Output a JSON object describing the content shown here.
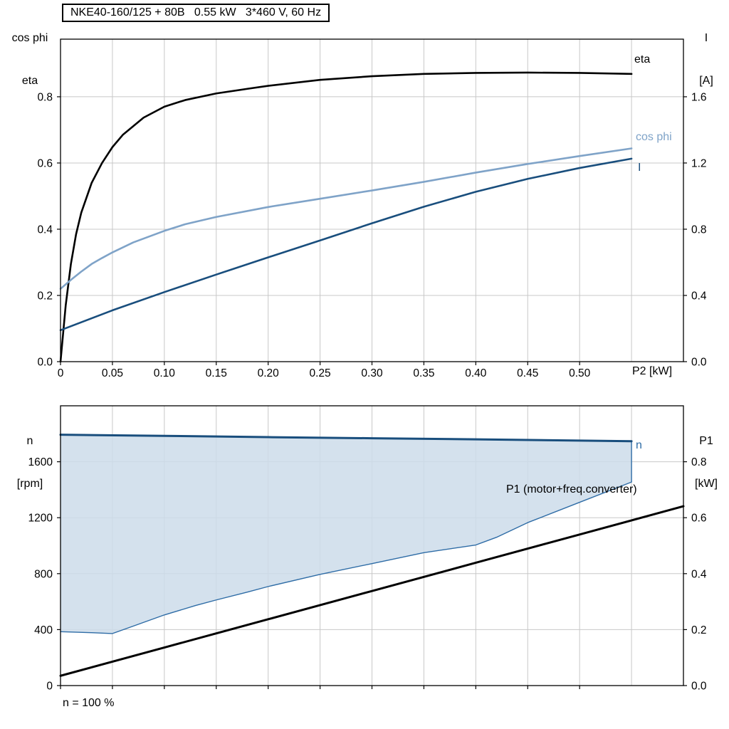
{
  "labels": {
    "top_left_axis": [
      "cos phi",
      "eta"
    ],
    "top_right_axis": [
      "I",
      "[A]"
    ],
    "bottom_left_axis": [
      "n",
      "[rpm]"
    ],
    "bottom_right_axis": [
      "P1",
      "[kW]"
    ],
    "footnote": "n = 100 %"
  },
  "colors": {
    "page_bg": "#ffffff",
    "plot_bg": "#ffffff",
    "grid": "#c8c8c8",
    "axis": "#000000",
    "text": "#000000",
    "eta": "#000000",
    "cos_phi": "#7fa3c8",
    "current": "#194e7d",
    "speed": "#194e7d",
    "speed_min": "#2e6ca6",
    "area_fill": "#cddcea",
    "p1": "#000000"
  },
  "chart_data": [
    {
      "id": "motor-performance",
      "type": "line",
      "title": "NKE40-160/125 + 80B   0.55 kW   3*460 V, 60 Hz",
      "xlabel": "P2 [kW]",
      "xlim": [
        0,
        0.6
      ],
      "x_ticks": [
        0,
        0.05,
        0.1,
        0.15,
        0.2,
        0.25,
        0.3,
        0.35,
        0.4,
        0.45,
        0.5
      ],
      "x_tick_labels": [
        "0",
        "0.05",
        "0.10",
        "0.15",
        "0.20",
        "0.25",
        "0.30",
        "0.35",
        "0.40",
        "0.45",
        "0.50"
      ],
      "x_grid": [
        0.05,
        0.1,
        0.15,
        0.2,
        0.25,
        0.3,
        0.35,
        0.4,
        0.45,
        0.5,
        0.55
      ],
      "grid": true,
      "y_left": {
        "label": "cos phi / eta",
        "lim": [
          0,
          0.974
        ],
        "ticks": [
          0,
          0.2,
          0.4,
          0.6,
          0.8
        ],
        "tick_labels": [
          "0.0",
          "0.2",
          "0.4",
          "0.6",
          "0.8"
        ]
      },
      "y_right": {
        "label": "I [A]",
        "lim": [
          0,
          1.948
        ],
        "ticks": [
          0,
          0.4,
          0.8,
          1.2,
          1.6
        ],
        "tick_labels": [
          "0.0",
          "0.4",
          "0.8",
          "1.2",
          "1.6"
        ]
      },
      "series": [
        {
          "name": "eta",
          "axis": "left",
          "color_key": "eta",
          "width": 2.6,
          "points": [
            [
              0,
              0
            ],
            [
              0.005,
              0.17
            ],
            [
              0.01,
              0.295
            ],
            [
              0.015,
              0.385
            ],
            [
              0.02,
              0.45
            ],
            [
              0.03,
              0.54
            ],
            [
              0.04,
              0.6
            ],
            [
              0.05,
              0.648
            ],
            [
              0.06,
              0.685
            ],
            [
              0.08,
              0.737
            ],
            [
              0.1,
              0.77
            ],
            [
              0.12,
              0.79
            ],
            [
              0.15,
              0.81
            ],
            [
              0.18,
              0.824
            ],
            [
              0.2,
              0.833
            ],
            [
              0.25,
              0.851
            ],
            [
              0.3,
              0.862
            ],
            [
              0.35,
              0.869
            ],
            [
              0.4,
              0.872
            ],
            [
              0.45,
              0.873
            ],
            [
              0.5,
              0.872
            ],
            [
              0.55,
              0.869
            ]
          ]
        },
        {
          "name": "cos phi",
          "axis": "left",
          "color_key": "cos_phi",
          "width": 2.6,
          "points": [
            [
              0,
              0.22
            ],
            [
              0.01,
              0.247
            ],
            [
              0.02,
              0.272
            ],
            [
              0.03,
              0.295
            ],
            [
              0.04,
              0.313
            ],
            [
              0.05,
              0.33
            ],
            [
              0.07,
              0.36
            ],
            [
              0.1,
              0.395
            ],
            [
              0.12,
              0.415
            ],
            [
              0.15,
              0.437
            ],
            [
              0.2,
              0.467
            ],
            [
              0.25,
              0.492
            ],
            [
              0.3,
              0.517
            ],
            [
              0.35,
              0.543
            ],
            [
              0.4,
              0.571
            ],
            [
              0.45,
              0.597
            ],
            [
              0.5,
              0.621
            ],
            [
              0.55,
              0.644
            ]
          ]
        },
        {
          "name": "I",
          "axis": "left",
          "color_key": "current",
          "width": 2.6,
          "points": [
            [
              0,
              0.095
            ],
            [
              0.05,
              0.155
            ],
            [
              0.1,
              0.21
            ],
            [
              0.15,
              0.263
            ],
            [
              0.2,
              0.315
            ],
            [
              0.25,
              0.366
            ],
            [
              0.3,
              0.418
            ],
            [
              0.35,
              0.468
            ],
            [
              0.4,
              0.513
            ],
            [
              0.45,
              0.552
            ],
            [
              0.5,
              0.585
            ],
            [
              0.55,
              0.613
            ]
          ]
        }
      ]
    },
    {
      "id": "speed-and-power",
      "type": "line",
      "title": "",
      "xlabel": "",
      "xlim": [
        0,
        0.6
      ],
      "x_ticks": [
        0,
        0.05,
        0.1,
        0.15,
        0.2,
        0.25,
        0.3,
        0.35,
        0.4,
        0.45,
        0.5
      ],
      "x_tick_labels": [],
      "x_grid": [
        0.05,
        0.1,
        0.15,
        0.2,
        0.25,
        0.3,
        0.35,
        0.4,
        0.45,
        0.5,
        0.55
      ],
      "grid": true,
      "y_left": {
        "label": "n [rpm]",
        "lim": [
          0,
          2000
        ],
        "ticks": [
          0,
          400,
          800,
          1200,
          1600
        ],
        "tick_labels": [
          "0",
          "400",
          "800",
          "1200",
          "1600"
        ]
      },
      "y_right": {
        "label": "P1 [kW]",
        "lim": [
          0,
          1.0
        ],
        "ticks": [
          0,
          0.2,
          0.4,
          0.6,
          0.8
        ],
        "tick_labels": [
          "0.0",
          "0.2",
          "0.4",
          "0.6",
          "0.8"
        ]
      },
      "area": {
        "name": "speed-control-range",
        "upper": "n",
        "lower": "n-min",
        "fill_key": "area_fill",
        "opacity": 0.85,
        "close_right": true
      },
      "annotation": "n = 100 %",
      "series": [
        {
          "name": "n",
          "axis": "left",
          "color_key": "speed",
          "width": 3,
          "points": [
            [
              0,
              1793
            ],
            [
              0.1,
              1785
            ],
            [
              0.2,
              1776
            ],
            [
              0.3,
              1768
            ],
            [
              0.4,
              1760
            ],
            [
              0.5,
              1751
            ],
            [
              0.55,
              1747
            ]
          ]
        },
        {
          "name": "n-min",
          "axis": "left",
          "color_key": "speed_min",
          "width": 1.4,
          "points": [
            [
              0,
              385
            ],
            [
              0.03,
              378
            ],
            [
              0.05,
              372
            ],
            [
              0.07,
              425
            ],
            [
              0.1,
              505
            ],
            [
              0.13,
              572
            ],
            [
              0.15,
              612
            ],
            [
              0.18,
              668
            ],
            [
              0.2,
              708
            ],
            [
              0.25,
              795
            ],
            [
              0.3,
              872
            ],
            [
              0.35,
              950
            ],
            [
              0.4,
              1005
            ],
            [
              0.42,
              1060
            ],
            [
              0.45,
              1165
            ],
            [
              0.5,
              1310
            ],
            [
              0.55,
              1455
            ]
          ]
        },
        {
          "name": "P1 (motor+freq.converter)",
          "axis": "right",
          "color_key": "p1",
          "width": 3,
          "points": [
            [
              0,
              0.035
            ],
            [
              0.1,
              0.136
            ],
            [
              0.2,
              0.237
            ],
            [
              0.3,
              0.338
            ],
            [
              0.4,
              0.439
            ],
            [
              0.5,
              0.54
            ],
            [
              0.6,
              0.641
            ]
          ]
        }
      ]
    }
  ]
}
